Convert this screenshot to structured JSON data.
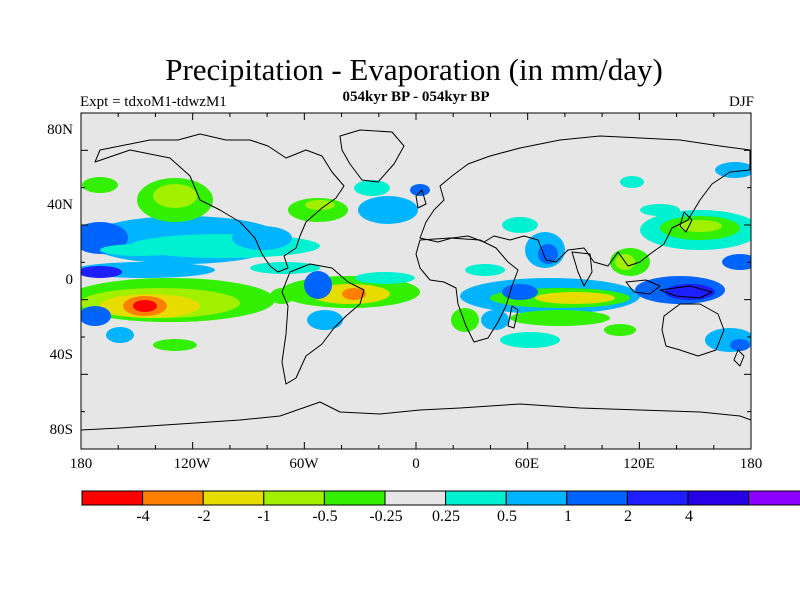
{
  "title": "Precipitation - Evaporation (in mm/day)",
  "subtitle": "054kyr BP - 054kyr BP",
  "experiment_label": "Expt = tdxoM1-tdwzM1",
  "season_label": "DJF",
  "map": {
    "projection": "cylindrical equidistant",
    "lon_range": [
      -180,
      180
    ],
    "lat_range": [
      -90,
      90
    ],
    "background_color": "#e6e6e6",
    "lat_labels": [
      "80N",
      "40N",
      "0",
      "40S",
      "80S"
    ],
    "lon_labels": [
      "180",
      "120W",
      "60W",
      "0",
      "60E",
      "120E",
      "180"
    ]
  },
  "colorbar": {
    "colors": [
      "#ff0000",
      "#ff8000",
      "#e6dc00",
      "#a0f000",
      "#32f000",
      "#e6e6e6",
      "#00f0d2",
      "#00b4ff",
      "#0064ff",
      "#1e1eff",
      "#2800e6",
      "#8c00ff"
    ],
    "labels": [
      "-4",
      "-2",
      "-1",
      "-0.5",
      "-0.25",
      "0.25",
      "0.5",
      "1",
      "2",
      "4"
    ]
  }
}
